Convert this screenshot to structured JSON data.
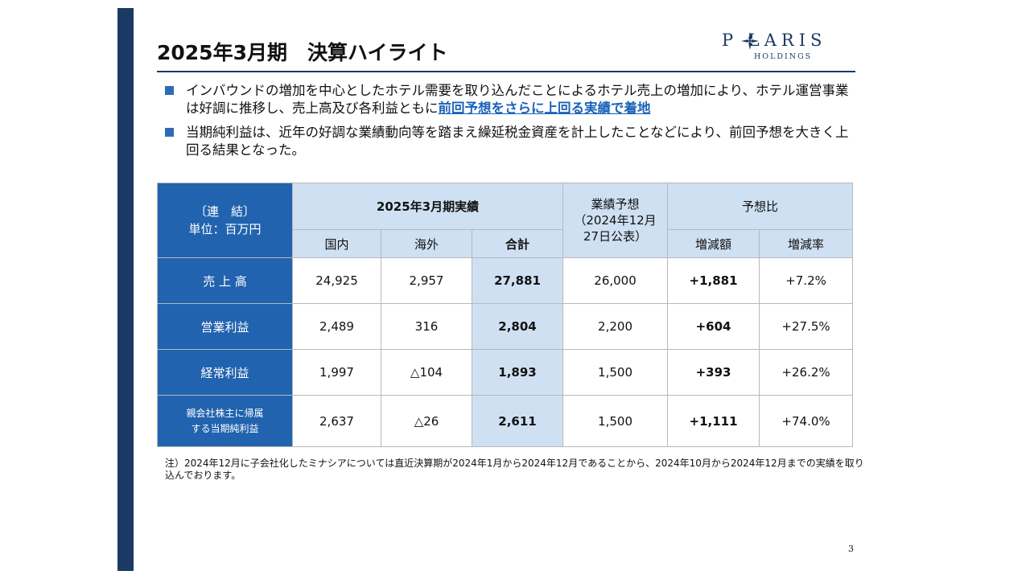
{
  "title": "2025年3月期　決算ハイライト",
  "logo": {
    "word": "P LARIS",
    "sub": "HOLDINGS"
  },
  "bullets": [
    {
      "text": "インバウンドの増加を中心としたホテル需要を取り込んだことによるホテル売上の増加により、ホテル運営事業は好調に推移し、売上高及び各利益ともに",
      "highlight": "前回予想をさらに上回る実績で着地"
    },
    {
      "text": "当期純利益は、近年の好調な業績動向等を踏まえ繰延税金資産を計上したことなどにより、前回予想を大きく上回る結果となった。",
      "highlight": ""
    }
  ],
  "table": {
    "corner": "〔連　結〕\n単位：百万円",
    "group_actual": "2025年3月期実績",
    "forecast": "業績予想\n（2024年12月\n27日公表）",
    "group_compare": "予想比",
    "sub_headers": [
      "国内",
      "海外",
      "合計",
      "増減額",
      "増減率"
    ],
    "rows": [
      {
        "label": "売 上 高",
        "domestic": "24,925",
        "overseas": "2,957",
        "total": "27,881",
        "forecast": "26,000",
        "diff": "+1,881",
        "rate": "+7.2%"
      },
      {
        "label": "営業利益",
        "domestic": "2,489",
        "overseas": "316",
        "total": "2,804",
        "forecast": "2,200",
        "diff": "+604",
        "rate": "+27.5%"
      },
      {
        "label": "経常利益",
        "domestic": "1,997",
        "overseas": "△104",
        "total": "1,893",
        "forecast": "1,500",
        "diff": "+393",
        "rate": "+26.2%"
      },
      {
        "label": "親会社株主に帰属\nする当期純利益",
        "domestic": "2,637",
        "overseas": "△26",
        "total": "2,611",
        "forecast": "1,500",
        "diff": "+1,111",
        "rate": "+74.0%"
      }
    ]
  },
  "note": "注）2024年12月に子会社化したミナシアについては直近決算期が2024年1月から2024年12月であることから、2024年10月から2024年12月までの実績を取り込んでおります。",
  "page_number": "3",
  "colors": {
    "navy": "#1b3a63",
    "table_blue": "#2163ae",
    "light_blue": "#cfe0f3",
    "accent_text": "#1a63b8"
  }
}
